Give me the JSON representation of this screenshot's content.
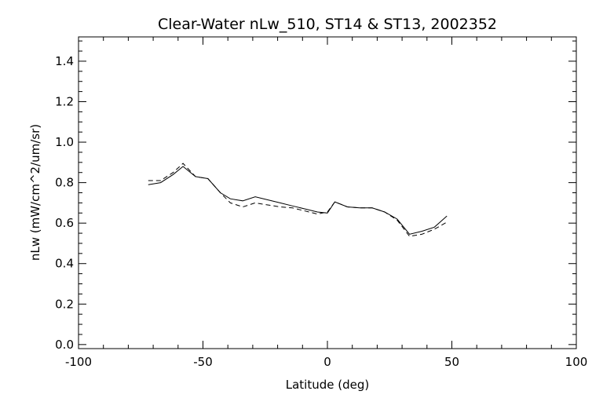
{
  "chart_data": {
    "type": "line",
    "title": "Clear-Water nLw_510, ST14 & ST13, 2002352",
    "xlabel": "Latitude (deg)",
    "ylabel": "nLw (mW/cm^2/um/sr)",
    "xlim": [
      -100,
      100
    ],
    "ylim": [
      -0.02,
      1.52
    ],
    "xticks": [
      "-100",
      "-50",
      "0",
      "50",
      "100"
    ],
    "yticks": [
      "0.0",
      "0.2",
      "0.4",
      "0.6",
      "0.8",
      "1.0",
      "1.2",
      "1.4"
    ],
    "grid": false,
    "series": [
      {
        "style": "solid",
        "color": "#000000",
        "x": [
          -72,
          -67,
          -62,
          -58,
          -53,
          -48,
          -43,
          -39,
          -34,
          -29,
          -24,
          -19,
          -14,
          -9,
          -4,
          0,
          3,
          8,
          13,
          18,
          23,
          28,
          33,
          38,
          43,
          48
        ],
        "y": [
          0.79,
          0.8,
          0.84,
          0.88,
          0.83,
          0.82,
          0.75,
          0.72,
          0.71,
          0.73,
          0.715,
          0.7,
          0.685,
          0.67,
          0.655,
          0.65,
          0.705,
          0.68,
          0.675,
          0.675,
          0.655,
          0.62,
          0.545,
          0.56,
          0.58,
          0.635
        ]
      },
      {
        "style": "dashed",
        "color": "#000000",
        "x": [
          -72,
          -67,
          -62,
          -58,
          -53,
          -48,
          -43,
          -39,
          -34,
          -29,
          -24,
          -19,
          -14,
          -9,
          -4,
          0,
          3,
          8,
          13,
          18,
          23,
          28,
          33,
          38,
          43,
          48
        ],
        "y": [
          0.81,
          0.81,
          0.85,
          0.895,
          0.83,
          0.82,
          0.75,
          0.7,
          0.68,
          0.7,
          0.69,
          0.68,
          0.675,
          0.66,
          0.645,
          0.655,
          0.705,
          0.68,
          0.675,
          0.675,
          0.655,
          0.615,
          0.535,
          0.545,
          0.57,
          0.605
        ]
      }
    ]
  }
}
